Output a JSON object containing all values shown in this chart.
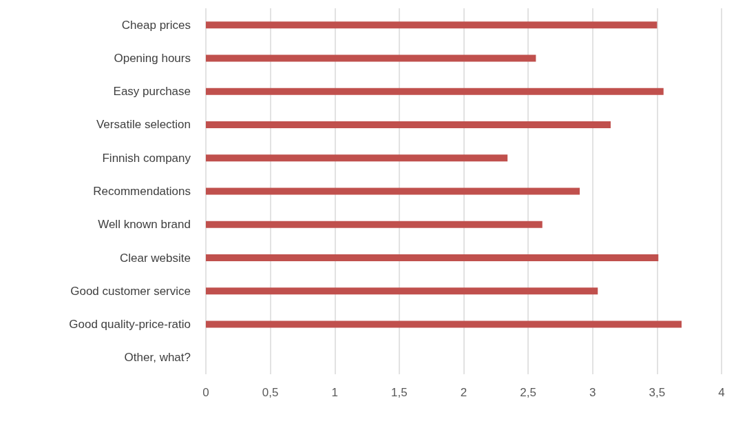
{
  "chart_data": {
    "type": "bar",
    "orientation": "horizontal",
    "categories": [
      "Cheap prices",
      "Opening hours",
      "Easy purchase",
      "Versatile selection",
      "Finnish company",
      "Recommendations",
      "Well known brand",
      "Clear website",
      "Good customer service",
      "Good quality-price-ratio",
      "Other, what?"
    ],
    "values": [
      3.5,
      2.56,
      3.55,
      3.14,
      2.34,
      2.9,
      2.61,
      3.51,
      3.04,
      3.69,
      null
    ],
    "color": "#c0504d",
    "xlim": [
      0,
      4
    ],
    "xticks": [
      0,
      {
        "value": 0.5,
        "label": "0,5"
      },
      1,
      {
        "value": 1.5,
        "label": "1,5"
      },
      2,
      {
        "value": 2.5,
        "label": "2,5"
      },
      3,
      {
        "value": 3.5,
        "label": "3,5"
      },
      4
    ],
    "grid": "x"
  }
}
